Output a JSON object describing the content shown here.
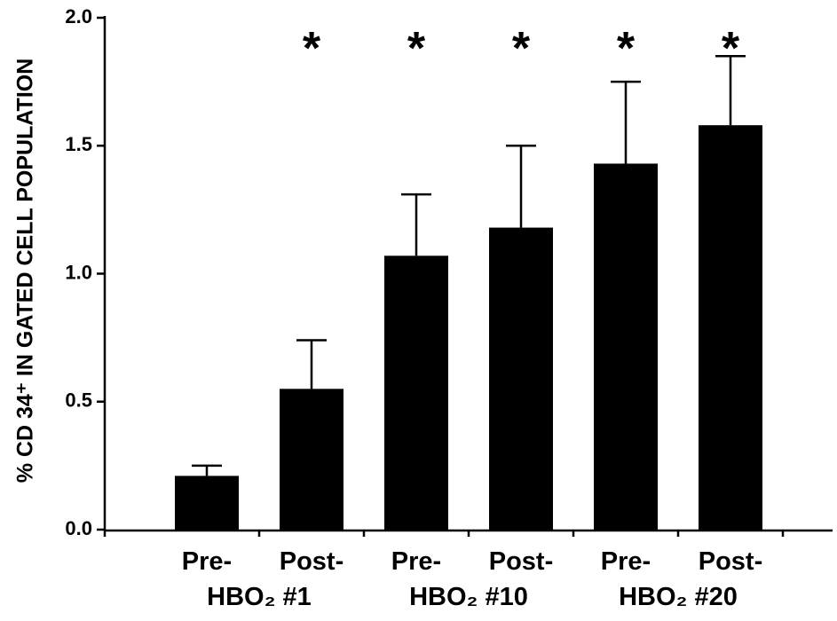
{
  "chart_data": {
    "type": "bar",
    "y_axis_label": "% CD 34⁺ IN GATED CELL POPULATION",
    "categories": [
      "Pre-",
      "Post-",
      "Pre-",
      "Post-",
      "Pre-",
      "Post-"
    ],
    "category_groups": [
      "HBO₂ #1",
      "HBO₂ #10",
      "HBO₂ #20"
    ],
    "values": [
      0.21,
      0.55,
      1.07,
      1.18,
      1.43,
      1.58
    ],
    "errors": [
      0.04,
      0.19,
      0.24,
      0.32,
      0.32,
      0.27
    ],
    "markers": [
      null,
      "*",
      "*",
      "*",
      "*",
      "*"
    ],
    "color": "#000000",
    "ylim": [
      0,
      2.0
    ],
    "yticks": [
      {
        "value": 0,
        "label": "0.0"
      },
      0.5,
      {
        "value": 1.0,
        "label": "1.0"
      },
      1.5,
      {
        "value": 2.0,
        "label": "2.0"
      }
    ],
    "grid": false
  }
}
